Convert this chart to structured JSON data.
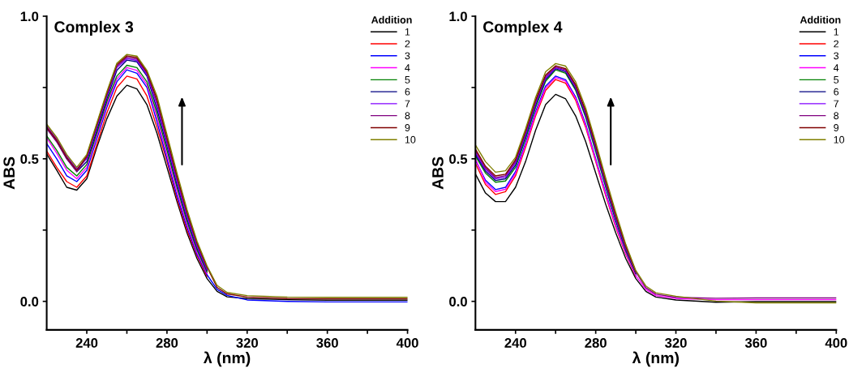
{
  "chart_data": [
    {
      "type": "line",
      "title": "Complex 3",
      "xlabel": "λ (nm)",
      "ylabel": "ABS",
      "legend_title": "Addition",
      "legend": "top right",
      "grid": false,
      "x": [
        220,
        225,
        230,
        235,
        240,
        245,
        250,
        255,
        260,
        265,
        270,
        275,
        280,
        285,
        290,
        295,
        300,
        305,
        310,
        320,
        340,
        360,
        380,
        400
      ],
      "xlim": [
        220,
        400
      ],
      "xticks": [
        240,
        {
          "value": 260,
          "label": null
        },
        280,
        {
          "value": 300,
          "label": null
        },
        320,
        {
          "value": 340,
          "label": null
        },
        360,
        {
          "value": 380,
          "label": null
        },
        400
      ],
      "ylim": [
        -0.1,
        1.0
      ],
      "yticks": [
        {
          "value": 0,
          "label": "0.0"
        },
        {
          "value": 0.25,
          "label": null
        },
        0.5,
        {
          "value": 0.75,
          "label": null
        },
        {
          "value": 1.0,
          "label": "1.0"
        }
      ],
      "series": [
        {
          "name": "1",
          "color": "#000000",
          "values": [
            0.517,
            0.46,
            0.4,
            0.39,
            0.43,
            0.54,
            0.64,
            0.72,
            0.758,
            0.745,
            0.69,
            0.59,
            0.47,
            0.35,
            0.24,
            0.15,
            0.08,
            0.035,
            0.016,
            0.01,
            0.006,
            0.004,
            0.004,
            0.004
          ]
        },
        {
          "name": "2",
          "color": "#ff0000",
          "values": [
            0.527,
            0.47,
            0.42,
            0.4,
            0.44,
            0.55,
            0.66,
            0.75,
            0.79,
            0.78,
            0.72,
            0.61,
            0.49,
            0.36,
            0.25,
            0.16,
            0.088,
            null,
            null,
            null,
            null,
            null,
            null,
            null
          ]
        },
        {
          "name": "3",
          "color": "#0000ff",
          "values": [
            0.553,
            0.5,
            0.44,
            0.42,
            0.46,
            0.57,
            0.68,
            0.77,
            0.812,
            0.8,
            0.75,
            0.63,
            0.5,
            0.37,
            0.26,
            0.165,
            0.093,
            0.042,
            0.021,
            0.005,
            0.0,
            -0.002,
            -0.002,
            -0.002
          ]
        },
        {
          "name": "4",
          "color": "#ff00ff",
          "values": [
            0.574,
            0.52,
            0.46,
            0.43,
            0.47,
            0.58,
            0.69,
            0.78,
            0.82,
            0.81,
            0.76,
            0.645,
            0.515,
            0.385,
            0.27,
            0.172,
            0.098,
            null,
            null,
            null,
            null,
            null,
            null,
            null
          ]
        },
        {
          "name": "5",
          "color": "#008000",
          "values": [
            0.58,
            0.53,
            0.47,
            0.44,
            0.48,
            0.59,
            0.7,
            0.79,
            0.828,
            0.82,
            0.77,
            0.66,
            0.53,
            0.4,
            0.28,
            0.18,
            0.103,
            null,
            null,
            null,
            null,
            null,
            null,
            null
          ]
        },
        {
          "name": "6",
          "color": "#000080",
          "values": [
            0.607,
            0.56,
            0.5,
            0.455,
            0.49,
            0.6,
            0.71,
            0.81,
            0.846,
            0.84,
            0.79,
            0.675,
            0.545,
            0.41,
            0.29,
            0.187,
            0.108,
            null,
            null,
            null,
            null,
            null,
            null,
            null
          ]
        },
        {
          "name": "7",
          "color": "#8000ff",
          "values": [
            0.616,
            0.57,
            0.51,
            0.465,
            0.5,
            0.61,
            0.72,
            0.82,
            0.851,
            0.845,
            0.795,
            0.69,
            0.555,
            0.42,
            0.298,
            0.193,
            0.112,
            null,
            null,
            null,
            null,
            null,
            null,
            null
          ]
        },
        {
          "name": "8",
          "color": "#800080",
          "values": [
            0.606,
            0.56,
            0.5,
            0.455,
            0.505,
            0.615,
            0.725,
            0.825,
            0.856,
            0.85,
            0.8,
            0.7,
            0.565,
            0.43,
            0.306,
            0.199,
            0.116,
            null,
            null,
            null,
            null,
            null,
            null,
            null
          ]
        },
        {
          "name": "9",
          "color": "#800000",
          "values": [
            0.611,
            0.565,
            0.505,
            0.46,
            0.51,
            0.62,
            0.73,
            0.83,
            0.861,
            0.855,
            0.805,
            0.71,
            0.575,
            0.44,
            0.314,
            0.205,
            0.12,
            0.049,
            0.026,
            0.015,
            0.01,
            0.009,
            0.009,
            0.009
          ]
        },
        {
          "name": "10",
          "color": "#808000",
          "values": [
            0.621,
            0.575,
            0.515,
            0.47,
            0.515,
            0.625,
            0.735,
            0.835,
            0.866,
            0.86,
            0.81,
            0.72,
            0.585,
            0.45,
            0.322,
            0.211,
            0.124,
            0.056,
            0.031,
            0.02,
            0.015,
            0.014,
            0.014,
            0.014
          ]
        }
      ]
    },
    {
      "type": "line",
      "title": "Complex 4",
      "xlabel": "λ (nm)",
      "ylabel": "ABS",
      "legend_title": "Addition",
      "legend": "top right",
      "grid": false,
      "x": [
        220,
        225,
        230,
        235,
        240,
        245,
        250,
        255,
        260,
        265,
        270,
        275,
        280,
        285,
        290,
        295,
        300,
        305,
        310,
        320,
        340,
        360,
        380,
        400
      ],
      "xlim": [
        220,
        400
      ],
      "xticks": [
        240,
        {
          "value": 260,
          "label": null
        },
        280,
        {
          "value": 300,
          "label": null
        },
        320,
        {
          "value": 340,
          "label": null
        },
        360,
        {
          "value": 380,
          "label": null
        },
        400
      ],
      "ylim": [
        -0.1,
        1.0
      ],
      "yticks": [
        {
          "value": 0,
          "label": "0.0"
        },
        {
          "value": 0.25,
          "label": null
        },
        0.5,
        {
          "value": 0.75,
          "label": null
        },
        {
          "value": 1.0,
          "label": "1.0"
        }
      ],
      "series": [
        {
          "name": "1",
          "color": "#000000",
          "values": [
            0.447,
            0.38,
            0.35,
            0.35,
            0.4,
            0.49,
            0.6,
            0.69,
            0.726,
            0.71,
            0.65,
            0.56,
            0.45,
            0.34,
            0.24,
            0.15,
            0.08,
            0.035,
            0.015,
            0.005,
            -0.003,
            -0.001,
            -0.001,
            -0.001
          ]
        },
        {
          "name": "2",
          "color": "#ff0000",
          "values": [
            0.484,
            0.41,
            0.375,
            0.385,
            0.44,
            0.54,
            0.65,
            0.74,
            0.778,
            0.765,
            0.705,
            0.61,
            0.49,
            0.37,
            0.26,
            0.165,
            0.088,
            null,
            null,
            null,
            null,
            null,
            null,
            null
          ]
        },
        {
          "name": "3",
          "color": "#0000ff",
          "values": [
            0.495,
            0.425,
            0.392,
            0.4,
            0.455,
            0.555,
            0.665,
            0.755,
            0.79,
            0.777,
            0.717,
            0.622,
            0.5,
            0.38,
            0.268,
            0.17,
            0.092,
            null,
            null,
            null,
            null,
            null,
            null,
            null
          ]
        },
        {
          "name": "4",
          "color": "#ff00ff",
          "values": [
            0.5,
            0.418,
            0.385,
            0.393,
            0.448,
            0.548,
            0.658,
            0.748,
            0.785,
            0.772,
            0.712,
            0.616,
            0.495,
            0.375,
            0.264,
            0.168,
            0.09,
            0.042,
            0.02,
            0.01,
            0.006,
            0.006,
            0.006,
            0.006
          ]
        },
        {
          "name": "5",
          "color": "#008000",
          "values": [
            0.51,
            0.45,
            0.418,
            0.422,
            0.47,
            0.57,
            0.68,
            0.772,
            0.812,
            0.8,
            0.74,
            0.645,
            0.525,
            0.4,
            0.282,
            0.178,
            0.097,
            null,
            null,
            null,
            null,
            null,
            null,
            null
          ]
        },
        {
          "name": "6",
          "color": "#000080",
          "values": [
            0.516,
            0.457,
            0.424,
            0.43,
            0.478,
            0.578,
            0.688,
            0.778,
            0.816,
            0.805,
            0.746,
            0.652,
            0.532,
            0.406,
            0.287,
            0.182,
            0.099,
            null,
            null,
            null,
            null,
            null,
            null,
            null
          ]
        },
        {
          "name": "7",
          "color": "#8000ff",
          "values": [
            0.522,
            0.463,
            0.43,
            0.436,
            0.485,
            0.585,
            0.694,
            0.783,
            0.819,
            0.809,
            0.751,
            0.658,
            0.538,
            0.412,
            0.292,
            0.186,
            0.101,
            null,
            null,
            null,
            null,
            null,
            null,
            null
          ]
        },
        {
          "name": "8",
          "color": "#800080",
          "values": [
            0.528,
            0.468,
            0.434,
            0.441,
            0.491,
            0.591,
            0.7,
            0.788,
            0.822,
            0.812,
            0.755,
            0.663,
            0.543,
            0.417,
            0.297,
            0.19,
            0.103,
            0.048,
            0.025,
            0.014,
            0.011,
            0.012,
            0.012,
            0.012
          ]
        },
        {
          "name": "9",
          "color": "#800000",
          "values": [
            0.534,
            0.474,
            0.44,
            0.446,
            0.497,
            0.597,
            0.706,
            0.794,
            0.826,
            0.816,
            0.76,
            0.668,
            0.548,
            0.422,
            0.302,
            0.194,
            0.105,
            null,
            null,
            null,
            null,
            null,
            null,
            null
          ]
        },
        {
          "name": "10",
          "color": "#808000",
          "values": [
            0.548,
            0.49,
            0.453,
            0.458,
            0.505,
            0.605,
            0.715,
            0.805,
            0.834,
            0.825,
            0.77,
            0.678,
            0.558,
            0.432,
            0.312,
            0.2,
            0.108,
            0.054,
            0.03,
            0.018,
            0.001,
            -0.005,
            -0.005,
            -0.005
          ]
        }
      ]
    }
  ]
}
